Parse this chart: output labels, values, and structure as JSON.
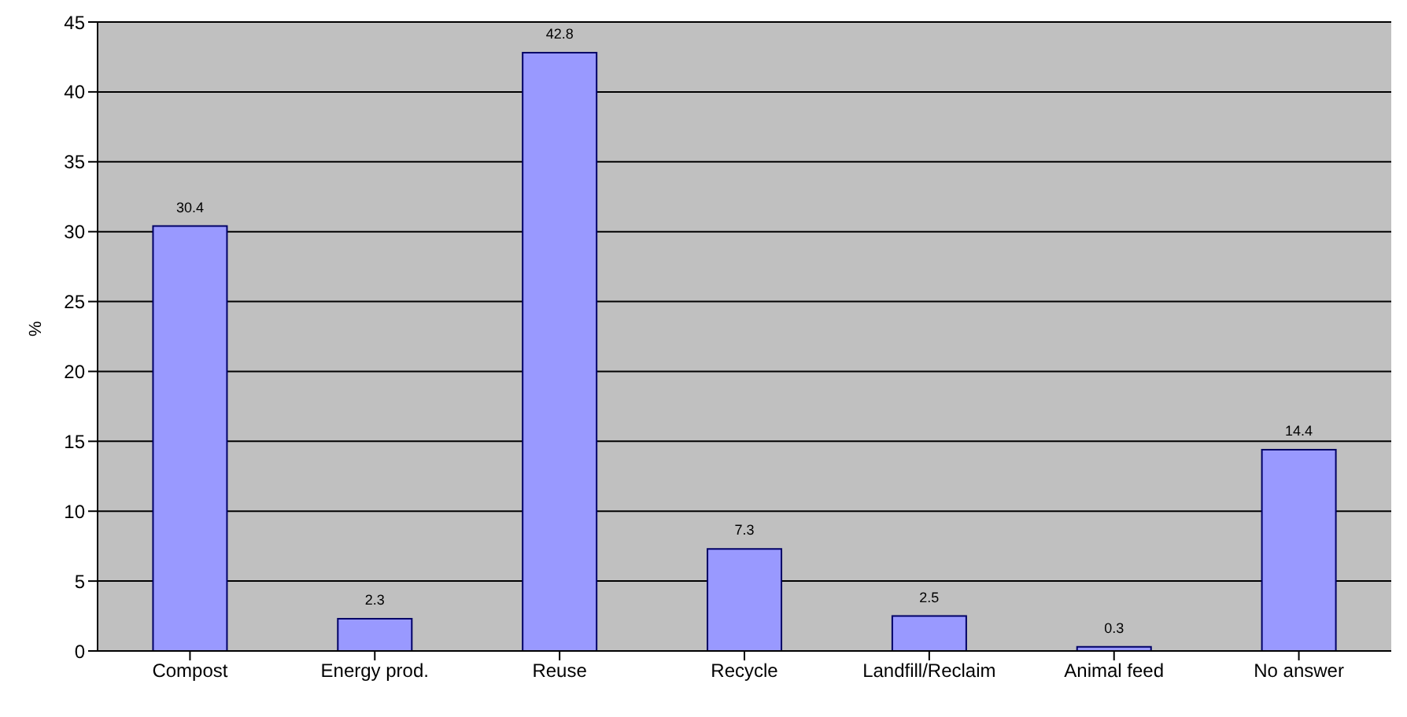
{
  "chart_data": {
    "type": "bar",
    "ylabel": "%",
    "categories": [
      "Compost",
      "Energy prod.",
      "Reuse",
      "Recycle",
      "Landfill/Reclaim",
      "Animal feed",
      "No answer"
    ],
    "values": [
      30.4,
      2.3,
      42.8,
      7.3,
      2.5,
      0.3,
      14.4
    ],
    "color": "#9999ff",
    "ylim": [
      0,
      45
    ],
    "yticks": [
      0,
      5,
      10,
      15,
      20,
      25,
      30,
      35,
      40,
      45
    ],
    "grid": "y",
    "data_labels": true,
    "legend": false
  }
}
